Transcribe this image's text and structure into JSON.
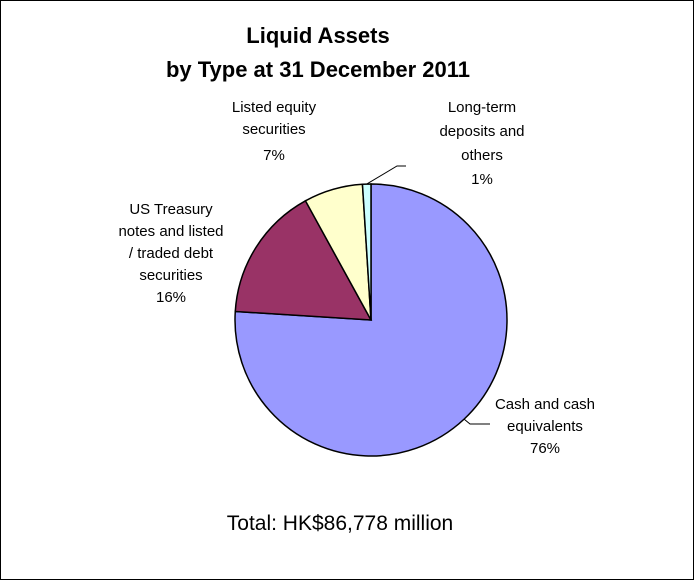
{
  "chart_data": {
    "type": "pie",
    "title": [
      "Liquid Assets",
      "by Type at 31 December 2011"
    ],
    "slices": [
      {
        "name": [
          "Cash and cash",
          "equivalents"
        ],
        "label": "76%",
        "value": 76,
        "color": "#9999FF"
      },
      {
        "name": [
          "US Treasury",
          "notes and listed",
          "/ traded debt",
          "securities"
        ],
        "label": "16%",
        "value": 16,
        "color": "#993366"
      },
      {
        "name": [
          "Listed equity",
          "securities"
        ],
        "label": "7%",
        "value": 7,
        "color": "#FFFFCC"
      },
      {
        "name": [
          "Long-term",
          "deposits and",
          "others"
        ],
        "label": "1%",
        "value": 1,
        "color": "#CCFFFF"
      }
    ],
    "start_angle_deg": 0,
    "direction": "clockwise",
    "footer": "Total: HK$86,778 million"
  }
}
